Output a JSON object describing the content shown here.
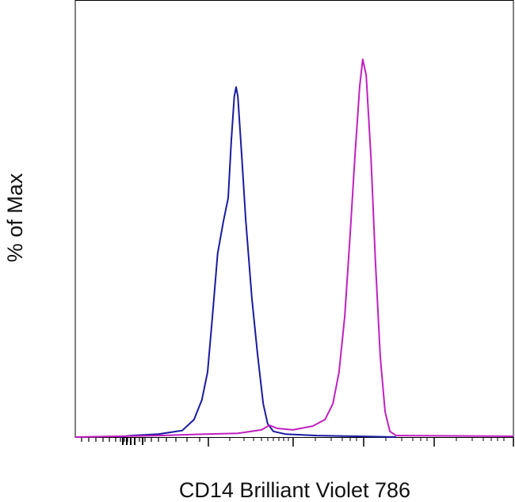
{
  "chart_data": {
    "type": "line",
    "xlabel": "CD14 Brilliant Violet 786",
    "ylabel": "% of Max",
    "xlim": [
      0,
      100
    ],
    "ylim": [
      0,
      115
    ],
    "series": [
      {
        "color": "#1a1aa0",
        "x": [
          9.9,
          12.7,
          19,
          24.4,
          27.1,
          28.9,
          30.2,
          31.3,
          32.5,
          33.8,
          34.9,
          35.6,
          36.3,
          36.7,
          37.1,
          38,
          38.9,
          40.3,
          41.6,
          42.9,
          43.9,
          45.2,
          47.9,
          55.2,
          64.2,
          73.2
        ],
        "values": [
          0,
          0.4,
          0.8,
          1.7,
          4.6,
          9.8,
          17.1,
          31.7,
          48.3,
          56.7,
          62.9,
          77.9,
          89.6,
          92.1,
          89.6,
          74,
          57.3,
          36.5,
          21.9,
          8.8,
          3.5,
          1.5,
          0.8,
          0.4,
          0.2,
          0
        ]
      },
      {
        "color": "#c020c0",
        "x": [
          0,
          19,
          29.8,
          37.1,
          42.5,
          44.3,
          46.1,
          49.7,
          54.2,
          57,
          58.8,
          60.2,
          61.5,
          62.7,
          63.8,
          64.9,
          65.6,
          66.4,
          67.5,
          68.5,
          69.6,
          70.7,
          71.8,
          73.2,
          100
        ],
        "values": [
          0,
          0.4,
          0.8,
          1,
          1.9,
          3.1,
          2.3,
          1.9,
          2.9,
          4.6,
          8.8,
          17.1,
          31.7,
          52.5,
          73.3,
          92.1,
          99.4,
          95.2,
          73.3,
          46.3,
          21.3,
          6.7,
          1.5,
          0.4,
          0.2
        ]
      }
    ]
  }
}
